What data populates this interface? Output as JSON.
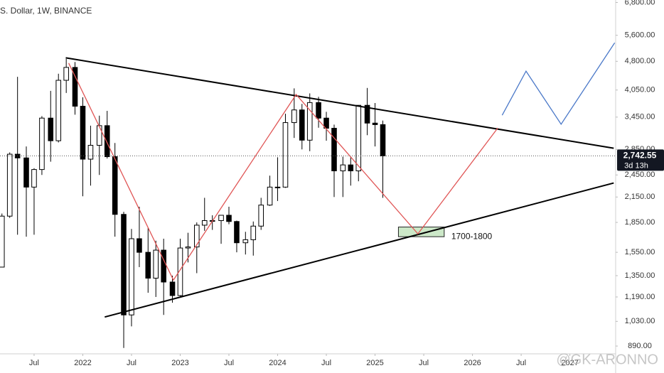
{
  "chart_data": {
    "type": "candlestick",
    "title": "S. Dollar, 1W, BINANCE",
    "log_scale": true,
    "grid": false,
    "xlim": [
      2021.15,
      2027.47
    ],
    "ylim": [
      850,
      6900
    ],
    "xticks": [
      {
        "value": 2021.5,
        "label": "Jul"
      },
      2022,
      {
        "value": 2022.5,
        "label": "Jul"
      },
      2023,
      {
        "value": 2023.5,
        "label": "Jul"
      },
      2024,
      {
        "value": 2024.5,
        "label": "Jul"
      },
      2025,
      {
        "value": 2025.5,
        "label": "Jul"
      },
      2026,
      {
        "value": 2026.5,
        "label": "Jul"
      },
      2027
    ],
    "yticks": [
      {
        "value": 6800,
        "label": "6,800.00"
      },
      {
        "value": 5600,
        "label": "5,600.00"
      },
      {
        "value": 4800,
        "label": "4,800.00"
      },
      {
        "value": 4050,
        "label": "4,050.00"
      },
      {
        "value": 3450,
        "label": "3,450.00"
      },
      {
        "value": 2850,
        "label": "2,850.00"
      },
      {
        "value": 2450,
        "label": "2,450.00"
      },
      {
        "value": 2150,
        "label": "2,150.00"
      },
      {
        "value": 1850,
        "label": "1,850.00"
      },
      {
        "value": 1550,
        "label": "1,550.00"
      },
      {
        "value": 1350,
        "label": "1,350.00"
      },
      {
        "value": 1190,
        "label": "1,190.00"
      },
      {
        "value": 1030,
        "label": "1,030.00"
      },
      {
        "value": 890,
        "label": "890.00"
      }
    ],
    "up_color": "#ffffff",
    "down_color": "#000000",
    "x": [
      2021.17,
      2021.25,
      2021.33,
      2021.42,
      2021.5,
      2021.58,
      2021.67,
      2021.75,
      2021.83,
      2021.92,
      2022.0,
      2022.08,
      2022.17,
      2022.25,
      2022.33,
      2022.42,
      2022.5,
      2022.58,
      2022.67,
      2022.75,
      2022.83,
      2022.92,
      2023.0,
      2023.08,
      2023.17,
      2023.25,
      2023.33,
      2023.42,
      2023.5,
      2023.58,
      2023.67,
      2023.75,
      2023.83,
      2023.92,
      2024.0,
      2024.08,
      2024.17,
      2024.25,
      2024.33,
      2024.42,
      2024.5,
      2024.58,
      2024.67,
      2024.75,
      2024.83,
      2024.92,
      2025.0,
      2025.08
    ],
    "open": [
      1420,
      1920,
      2770,
      2710,
      2280,
      2530,
      3430,
      3000,
      4290,
      4630,
      3680,
      2690,
      2920,
      3280,
      2730,
      1940,
      1070,
      1680,
      1550,
      1330,
      1570,
      1300,
      1200,
      1590,
      1600,
      1820,
      1870,
      1870,
      1930,
      1860,
      1640,
      1670,
      1810,
      2050,
      2280,
      2280,
      3340,
      3600,
      3010,
      3760,
      3430,
      3230,
      2510,
      2600,
      2510,
      3700,
      3330,
      3300
    ],
    "high": [
      1950,
      2800,
      4380,
      2900,
      2550,
      3470,
      4030,
      4460,
      4870,
      4780,
      3880,
      3280,
      3480,
      3580,
      2960,
      1970,
      1780,
      2030,
      1790,
      1660,
      1680,
      1350,
      1680,
      1740,
      1850,
      2140,
      1930,
      1930,
      2030,
      1870,
      1750,
      1860,
      2140,
      2440,
      2720,
      3520,
      4090,
      3730,
      3970,
      3890,
      3560,
      3300,
      2730,
      2720,
      3700,
      4100,
      3750,
      3380
    ],
    "low": [
      1420,
      1900,
      1720,
      1700,
      1720,
      2450,
      2650,
      2970,
      3980,
      3500,
      2160,
      2300,
      2450,
      2700,
      1700,
      880,
      1000,
      1420,
      1220,
      1190,
      1070,
      1150,
      1190,
      1460,
      1370,
      1760,
      1770,
      1630,
      1830,
      1550,
      1530,
      1520,
      1770,
      2040,
      2100,
      2270,
      3050,
      2850,
      2820,
      3240,
      3000,
      2150,
      2150,
      2300,
      2360,
      3100,
      2900,
      2140
    ],
    "close": [
      1920,
      2770,
      2710,
      2280,
      2530,
      3430,
      3000,
      4290,
      4630,
      3680,
      2690,
      2920,
      3280,
      2730,
      1940,
      1070,
      1680,
      1550,
      1330,
      1570,
      1300,
      1200,
      1590,
      1600,
      1820,
      1870,
      1870,
      1930,
      1860,
      1640,
      1670,
      1810,
      2050,
      2280,
      2280,
      3340,
      3600,
      3010,
      3760,
      3430,
      3230,
      2510,
      2600,
      2510,
      3700,
      3330,
      3300,
      2742.55
    ],
    "last_price": {
      "value": 2742.55,
      "label": "2,742.55"
    },
    "countdown": "3d 13h",
    "trendlines": [
      {
        "color": "#000000",
        "x": [
          2021.825,
          2027.45
        ],
        "values": [
          4900,
          2870
        ]
      },
      {
        "color": "#000000",
        "x": [
          2022.225,
          2027.45
        ],
        "values": [
          1057,
          2336
        ]
      },
      {
        "color": "#e05555",
        "x": [
          2021.855,
          2022.93,
          2024.19,
          2025.44,
          2026.26
        ],
        "values": [
          4750,
          1315,
          3945,
          1729,
          3235
        ]
      },
      {
        "color": "#4a78c8",
        "x": [
          2026.305,
          2026.55,
          2026.91,
          2027.46
        ],
        "values": [
          3488,
          4529,
          3308,
          5355
        ]
      }
    ],
    "zone": {
      "text": "1700-1800",
      "low": 1700,
      "high": 1800,
      "x": [
        2025.24,
        2025.71
      ],
      "color": "#cce8c8"
    },
    "watermark": "@GK-ARONNO"
  }
}
